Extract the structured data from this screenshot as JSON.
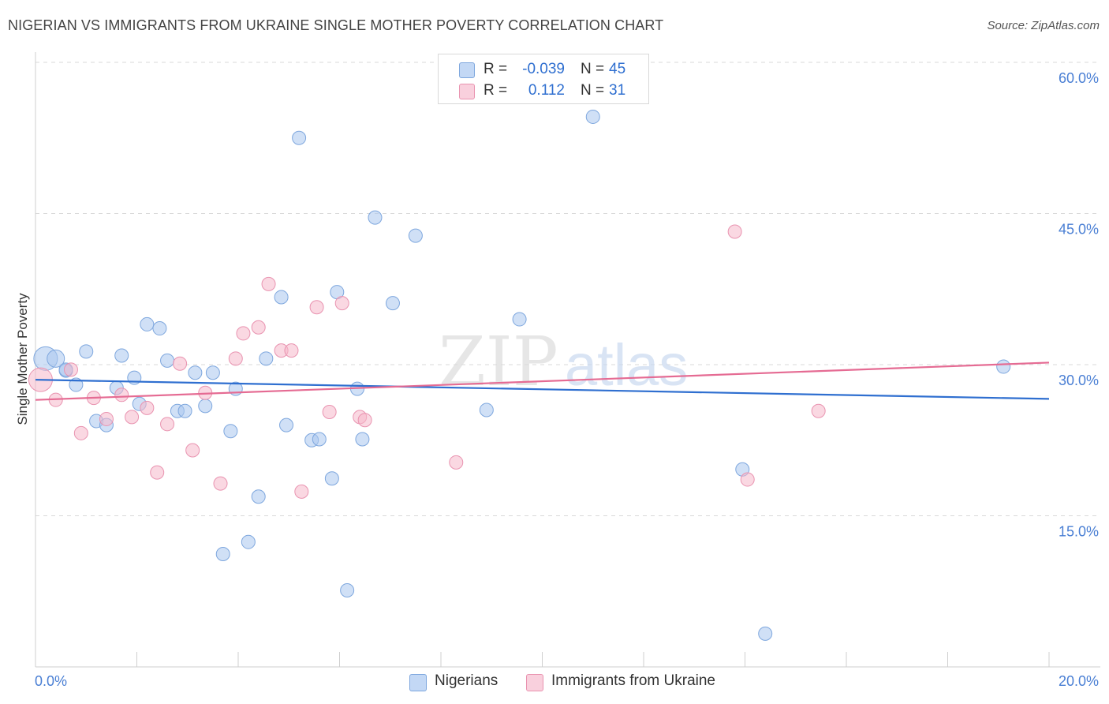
{
  "title": "NIGERIAN VS IMMIGRANTS FROM UKRAINE SINGLE MOTHER POVERTY CORRELATION CHART",
  "source": "Source: ZipAtlas.com",
  "watermark": {
    "part1": "ZIP",
    "part2": "atlas"
  },
  "legend": {
    "rows": [
      {
        "r_label": "R =",
        "r_value": "-0.039",
        "n_label": "N =",
        "n_value": "45"
      },
      {
        "r_label": "R =",
        "r_value": "0.112",
        "n_label": "N =",
        "n_value": "31"
      }
    ]
  },
  "colors": {
    "blue_fill": "#a9c6ee",
    "blue_stroke": "#7ea7de",
    "blue_line": "#2f6fd0",
    "pink_fill": "#f5b8cb",
    "pink_stroke": "#e993b0",
    "pink_line": "#e56b93",
    "grid": "#d9d9d9",
    "tick_text": "#4a7fd4"
  },
  "chart_data": {
    "type": "scatter",
    "title": "NIGERIAN VS IMMIGRANTS FROM UKRAINE SINGLE MOTHER POVERTY CORRELATION CHART",
    "xlabel": "",
    "ylabel": "Single Mother Poverty",
    "xlim": [
      0,
      20
    ],
    "ylim": [
      0,
      60
    ],
    "x_tick_labels": [
      "0.0%",
      "20.0%"
    ],
    "y_ticks": [
      15,
      30,
      45,
      60
    ],
    "y_tick_labels": [
      "15.0%",
      "30.0%",
      "45.0%",
      "60.0%"
    ],
    "series": [
      {
        "name": "Nigerians",
        "color": "#a9c6ee",
        "r": -0.039,
        "n": 45,
        "trend": {
          "x": [
            0,
            20
          ],
          "y": [
            28.5,
            26.6
          ]
        },
        "points": [
          {
            "x": 0.2,
            "y": 30.6,
            "s": 3
          },
          {
            "x": 0.4,
            "y": 30.6,
            "s": 2
          },
          {
            "x": 0.6,
            "y": 29.4,
            "s": 1
          },
          {
            "x": 0.8,
            "y": 28.0,
            "s": 1
          },
          {
            "x": 1.0,
            "y": 31.3,
            "s": 1
          },
          {
            "x": 1.2,
            "y": 24.4,
            "s": 1
          },
          {
            "x": 1.4,
            "y": 24.0,
            "s": 1
          },
          {
            "x": 1.6,
            "y": 27.7,
            "s": 1
          },
          {
            "x": 1.7,
            "y": 30.9,
            "s": 1
          },
          {
            "x": 1.95,
            "y": 28.7,
            "s": 1
          },
          {
            "x": 2.05,
            "y": 26.1,
            "s": 1
          },
          {
            "x": 2.2,
            "y": 34.0,
            "s": 1
          },
          {
            "x": 2.45,
            "y": 33.6,
            "s": 1
          },
          {
            "x": 2.6,
            "y": 30.4,
            "s": 1
          },
          {
            "x": 2.8,
            "y": 25.4,
            "s": 1
          },
          {
            "x": 2.95,
            "y": 25.4,
            "s": 1
          },
          {
            "x": 3.15,
            "y": 29.2,
            "s": 1
          },
          {
            "x": 3.35,
            "y": 25.9,
            "s": 1
          },
          {
            "x": 3.5,
            "y": 29.2,
            "s": 1
          },
          {
            "x": 3.7,
            "y": 11.2,
            "s": 1
          },
          {
            "x": 3.85,
            "y": 23.4,
            "s": 1
          },
          {
            "x": 3.95,
            "y": 27.6,
            "s": 1
          },
          {
            "x": 4.2,
            "y": 12.4,
            "s": 1
          },
          {
            "x": 4.4,
            "y": 16.9,
            "s": 1
          },
          {
            "x": 4.55,
            "y": 30.6,
            "s": 1
          },
          {
            "x": 4.85,
            "y": 36.7,
            "s": 1
          },
          {
            "x": 4.95,
            "y": 24.0,
            "s": 1
          },
          {
            "x": 5.2,
            "y": 52.5,
            "s": 1
          },
          {
            "x": 5.45,
            "y": 22.5,
            "s": 1
          },
          {
            "x": 5.6,
            "y": 22.6,
            "s": 1
          },
          {
            "x": 5.85,
            "y": 18.7,
            "s": 1
          },
          {
            "x": 5.95,
            "y": 37.2,
            "s": 1
          },
          {
            "x": 6.15,
            "y": 7.6,
            "s": 1
          },
          {
            "x": 6.35,
            "y": 27.6,
            "s": 1
          },
          {
            "x": 6.45,
            "y": 22.6,
            "s": 1
          },
          {
            "x": 6.7,
            "y": 44.6,
            "s": 1
          },
          {
            "x": 7.05,
            "y": 36.1,
            "s": 1
          },
          {
            "x": 7.5,
            "y": 42.8,
            "s": 1
          },
          {
            "x": 8.9,
            "y": 25.5,
            "s": 1
          },
          {
            "x": 9.55,
            "y": 34.5,
            "s": 1
          },
          {
            "x": 11.0,
            "y": 54.6,
            "s": 1
          },
          {
            "x": 13.95,
            "y": 19.6,
            "s": 1
          },
          {
            "x": 14.4,
            "y": 3.3,
            "s": 1
          },
          {
            "x": 19.1,
            "y": 29.8,
            "s": 1
          },
          {
            "x": 0.6,
            "y": 29.5,
            "s": 1
          }
        ]
      },
      {
        "name": "Immigrants from Ukraine",
        "color": "#f5b8cb",
        "r": 0.112,
        "n": 31,
        "trend": {
          "x": [
            0,
            20
          ],
          "y": [
            26.5,
            30.2
          ]
        },
        "points": [
          {
            "x": 0.1,
            "y": 28.5,
            "s": 3
          },
          {
            "x": 0.4,
            "y": 26.5,
            "s": 1
          },
          {
            "x": 0.7,
            "y": 29.5,
            "s": 1
          },
          {
            "x": 0.9,
            "y": 23.2,
            "s": 1
          },
          {
            "x": 1.15,
            "y": 26.7,
            "s": 1
          },
          {
            "x": 1.4,
            "y": 24.6,
            "s": 1
          },
          {
            "x": 1.7,
            "y": 27.0,
            "s": 1
          },
          {
            "x": 1.9,
            "y": 24.8,
            "s": 1
          },
          {
            "x": 2.2,
            "y": 25.7,
            "s": 1
          },
          {
            "x": 2.4,
            "y": 19.3,
            "s": 1
          },
          {
            "x": 2.6,
            "y": 24.1,
            "s": 1
          },
          {
            "x": 2.85,
            "y": 30.1,
            "s": 1
          },
          {
            "x": 3.1,
            "y": 21.5,
            "s": 1
          },
          {
            "x": 3.35,
            "y": 27.2,
            "s": 1
          },
          {
            "x": 3.65,
            "y": 18.2,
            "s": 1
          },
          {
            "x": 3.95,
            "y": 30.6,
            "s": 1
          },
          {
            "x": 4.1,
            "y": 33.1,
            "s": 1
          },
          {
            "x": 4.4,
            "y": 33.7,
            "s": 1
          },
          {
            "x": 4.6,
            "y": 38.0,
            "s": 1
          },
          {
            "x": 4.85,
            "y": 31.4,
            "s": 1
          },
          {
            "x": 5.05,
            "y": 31.4,
            "s": 1
          },
          {
            "x": 5.25,
            "y": 17.4,
            "s": 1
          },
          {
            "x": 5.55,
            "y": 35.7,
            "s": 1
          },
          {
            "x": 5.8,
            "y": 25.3,
            "s": 1
          },
          {
            "x": 6.05,
            "y": 36.1,
            "s": 1
          },
          {
            "x": 6.4,
            "y": 24.8,
            "s": 1
          },
          {
            "x": 6.5,
            "y": 24.5,
            "s": 1
          },
          {
            "x": 8.3,
            "y": 20.3,
            "s": 1
          },
          {
            "x": 13.8,
            "y": 43.2,
            "s": 1
          },
          {
            "x": 14.05,
            "y": 18.6,
            "s": 1
          },
          {
            "x": 15.45,
            "y": 25.4,
            "s": 1
          }
        ]
      }
    ]
  },
  "bottom_legend": {
    "items": [
      {
        "label": "Nigerians",
        "color": "#a9c6ee"
      },
      {
        "label": "Immigrants from Ukraine",
        "color": "#f5b8cb"
      }
    ]
  }
}
